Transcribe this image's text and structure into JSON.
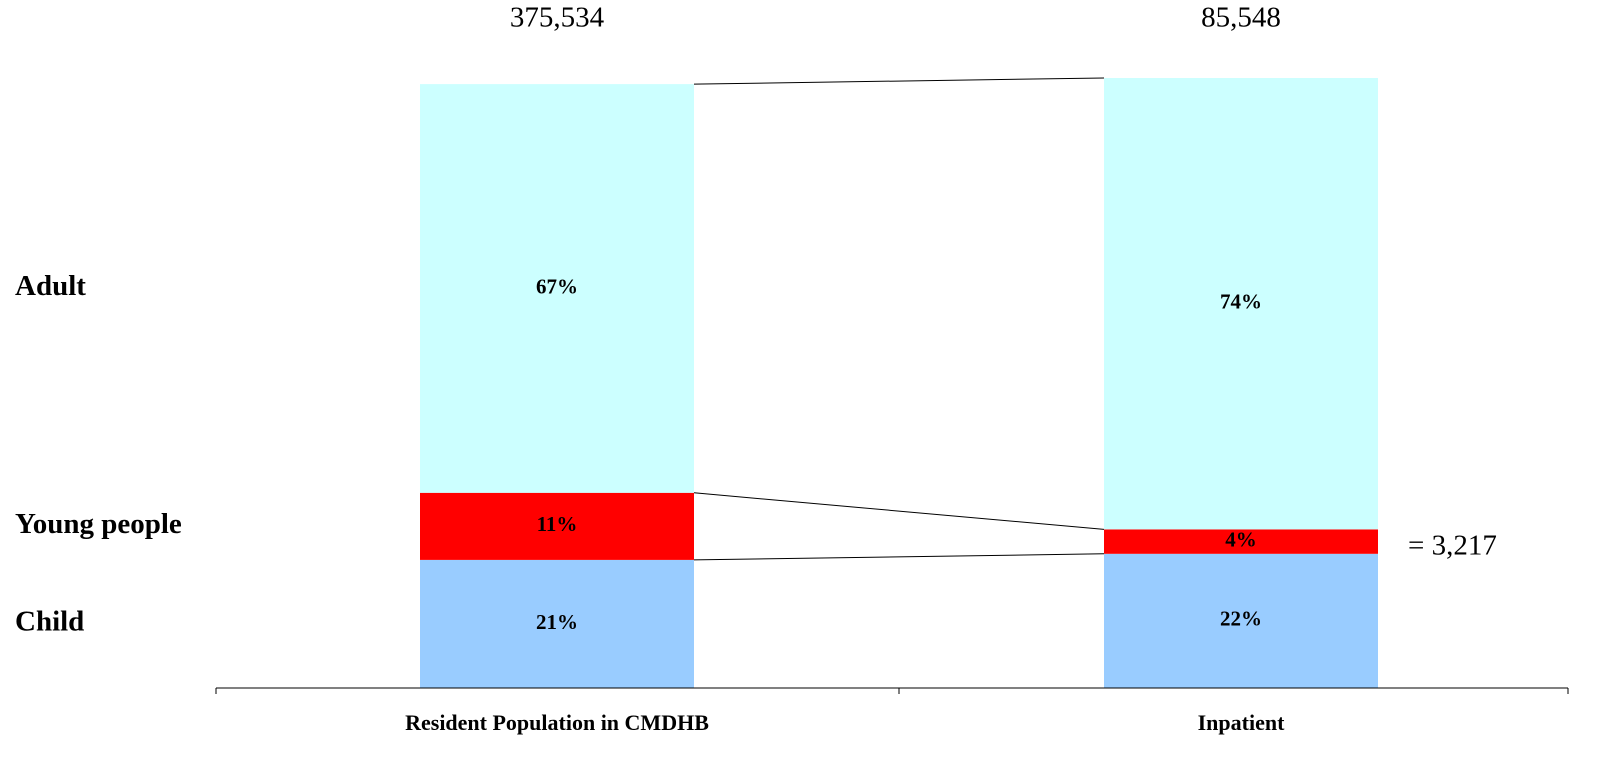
{
  "chart_data": {
    "type": "bar",
    "stacked": true,
    "categories": [
      "Resident Population in CMDHB",
      "Inpatient"
    ],
    "series": [
      {
        "name": "Child",
        "color": "#99ccff",
        "values": [
          21,
          22
        ],
        "value_labels": [
          "21%",
          "22%"
        ]
      },
      {
        "name": "Young people",
        "color": "#ff0000",
        "values": [
          11,
          4
        ],
        "value_labels": [
          "11%",
          "4%"
        ]
      },
      {
        "name": "Adult",
        "color": "#ccffff",
        "values": [
          67,
          74
        ],
        "value_labels": [
          "67%",
          "74%"
        ]
      }
    ],
    "ylim": [
      0,
      100
    ],
    "annotations": [
      "375,534",
      "85,548",
      "= 3,217"
    ]
  }
}
